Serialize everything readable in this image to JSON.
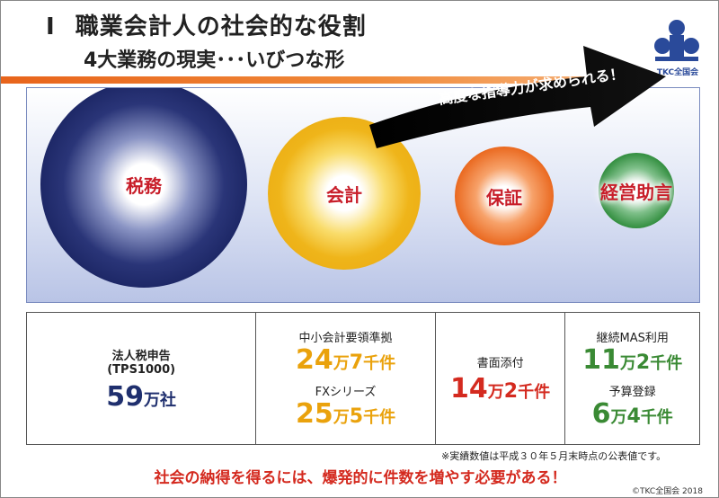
{
  "header": {
    "roman": "Ⅰ",
    "title": "職業会計人の社会的な役割",
    "subtitle": "4大業務の現実･･･いびつな形"
  },
  "logo": {
    "text": "TKC全国会"
  },
  "circles": {
    "zeimu": "税務",
    "kaikei": "会計",
    "hosho": "保証",
    "keiei": "経営助言"
  },
  "arrow": {
    "label": "高度な指導力が求められる！"
  },
  "stats": {
    "houjin": {
      "label": "法人税申告",
      "sub": "(TPS1000)",
      "num": "59",
      "unit": "万社"
    },
    "chusho": {
      "label": "中小会計要領準拠",
      "num1": "24",
      "unit1": "万",
      "num2": "7",
      "unit2": "千件"
    },
    "fx": {
      "label": "FXシリーズ",
      "num1": "25",
      "unit1": "万",
      "num2": "5",
      "unit2": "千件"
    },
    "shomen": {
      "label": "書面添付",
      "num1": "14",
      "unit1": "万",
      "num2": "2",
      "unit2": "千件"
    },
    "mas": {
      "label": "継続MAS利用",
      "num1": "11",
      "unit1": "万",
      "num2": "2",
      "unit2": "千件"
    },
    "yosan": {
      "label": "予算登録",
      "num1": "6",
      "unit1": "万",
      "num2": "4",
      "unit2": "千件"
    }
  },
  "note": "※実績数値は平成３０年５月末時点の公表値です。",
  "conclusion": "社会の納得を得るには、爆発的に件数を増やす必要がある！",
  "copyright": "©TKC全国会 2018",
  "colors": {
    "accent_orange": "#e8641b",
    "navy": "#1f2f6e",
    "gold": "#eaa20c",
    "red": "#d42a1f",
    "green": "#3a8a34"
  }
}
